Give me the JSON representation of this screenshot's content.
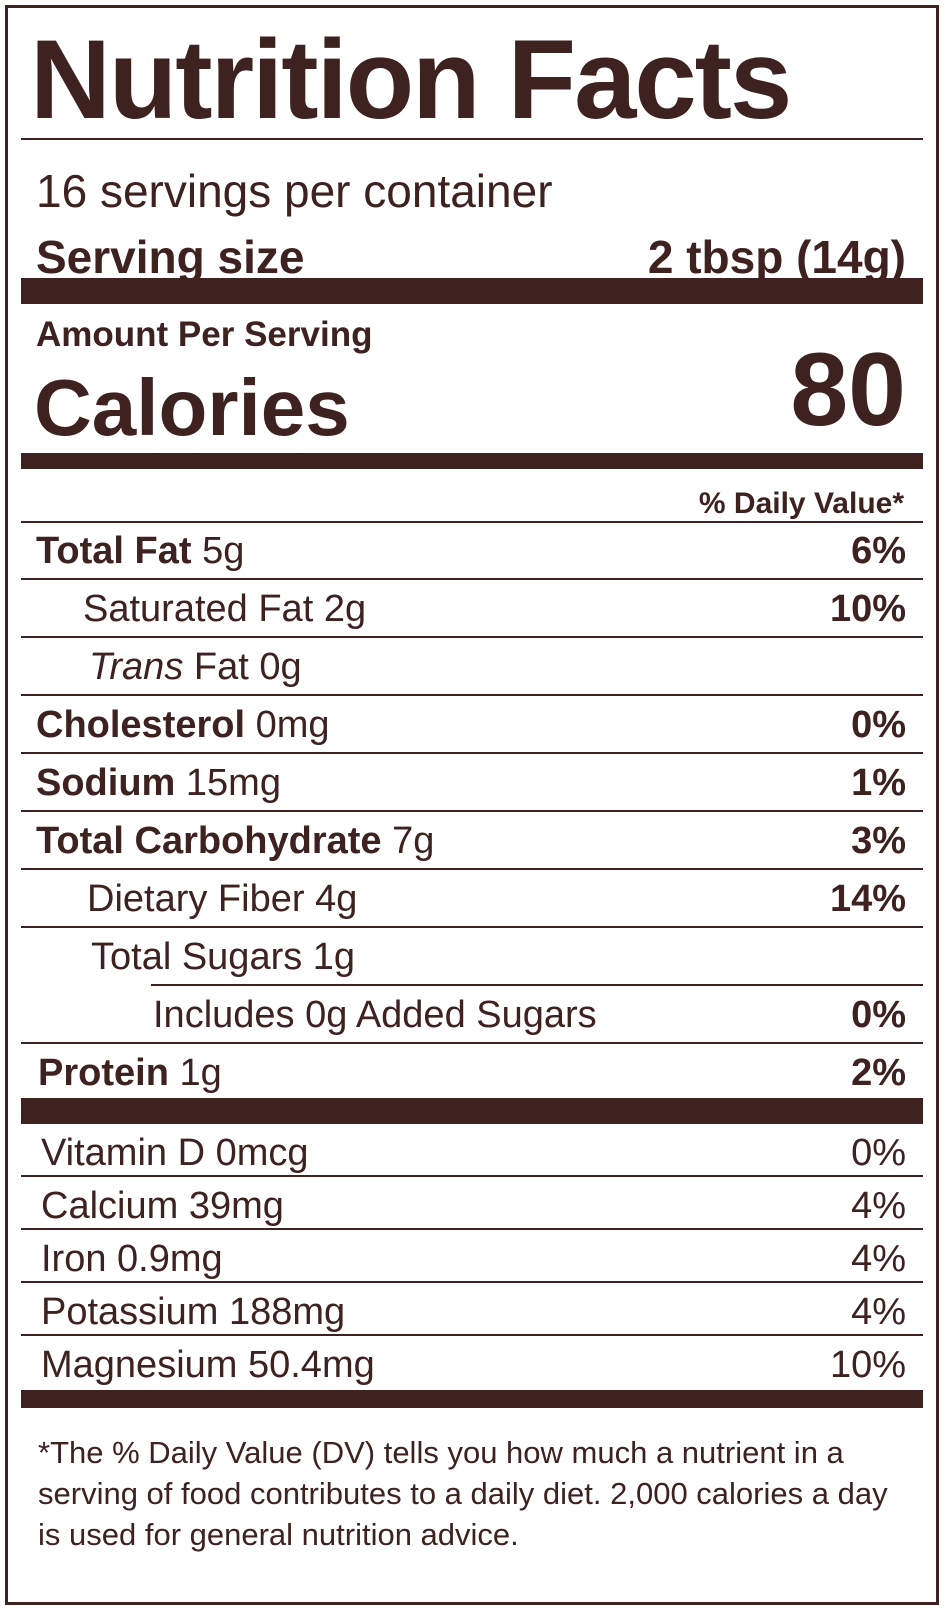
{
  "title": "Nutrition Facts",
  "servings_per_container": "16 servings per container",
  "serving_size_label": "Serving size",
  "serving_size_value": "2 tbsp (14g)",
  "amount_per_serving": "Amount Per Serving",
  "calories_label": "Calories",
  "calories_value": "80",
  "daily_value_header": "% Daily Value*",
  "nutrients": [
    {
      "name": "Total Fat",
      "amount": "5g",
      "dv": "6%"
    },
    {
      "name": "Saturated Fat",
      "amount": "2g",
      "dv": "10%"
    },
    {
      "name": "Trans",
      "name_rest": "Fat",
      "amount": "0g",
      "dv": ""
    },
    {
      "name": "Cholesterol",
      "amount": "0mg",
      "dv": "0%"
    },
    {
      "name": "Sodium",
      "amount": "15mg",
      "dv": "1%"
    },
    {
      "name": "Total Carbohydrate",
      "amount": "7g",
      "dv": "3%"
    },
    {
      "name": "Dietary Fiber",
      "amount": "4g",
      "dv": "14%"
    },
    {
      "name": "Total Sugars",
      "amount": "1g",
      "dv": ""
    },
    {
      "name": "Includes 0g Added Sugars",
      "amount": "",
      "dv": "0%"
    },
    {
      "name": "Protein",
      "amount": "1g",
      "dv": "2%"
    }
  ],
  "vitamins": [
    {
      "name": "Vitamin D",
      "amount": "0mcg",
      "dv": "0%"
    },
    {
      "name": "Calcium",
      "amount": "39mg",
      "dv": "4%"
    },
    {
      "name": "Iron",
      "amount": "0.9mg",
      "dv": "4%"
    },
    {
      "name": "Potassium",
      "amount": "188mg",
      "dv": "4%"
    },
    {
      "name": "Magnesium",
      "amount": "50.4mg",
      "dv": "10%"
    }
  ],
  "footnote": "*The % Daily Value (DV) tells you how much a nutrient in a serving of food contributes to a daily diet. 2,000 calories a day is used for general nutrition advice.",
  "colors": {
    "ink": "#3d2220",
    "background": "#ffffff"
  }
}
